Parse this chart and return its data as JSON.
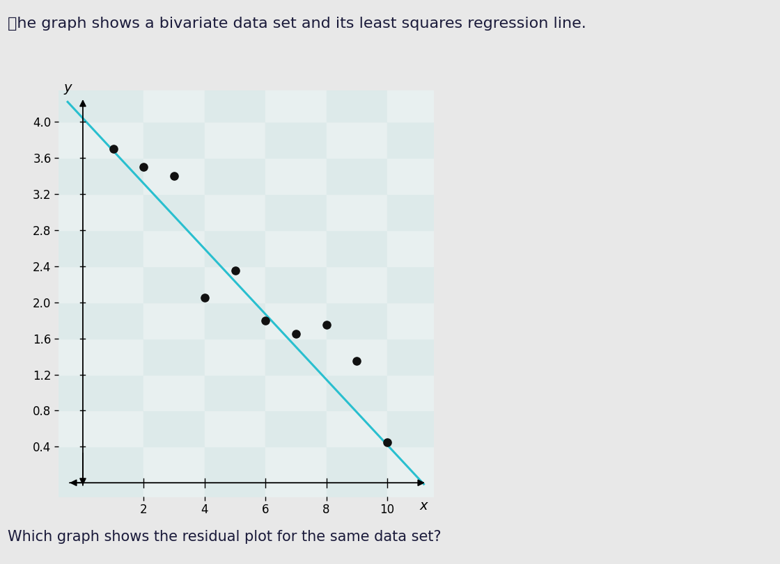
{
  "title": "⮩he graph shows a bivariate data set and its least squares regression line.",
  "question": "Which graph shows the residual plot for the same data set?",
  "title_fontsize": 16,
  "question_fontsize": 15,
  "background_color": "#e8e8e8",
  "plot_bg_color": "#e0eaea",
  "data_points": [
    [
      1,
      3.7
    ],
    [
      2,
      3.5
    ],
    [
      3,
      3.4
    ],
    [
      5,
      2.35
    ],
    [
      4,
      2.05
    ],
    [
      6,
      1.8
    ],
    [
      7,
      1.65
    ],
    [
      8,
      1.75
    ],
    [
      9,
      1.35
    ],
    [
      10,
      0.45
    ]
  ],
  "regression_intercept": 4.04,
  "regression_slope": -0.362,
  "line_color": "#29BFCF",
  "line_width": 2.2,
  "dot_color": "#111111",
  "dot_size": 65,
  "xlim": [
    -0.8,
    11.5
  ],
  "ylim": [
    -0.15,
    4.35
  ],
  "xticks": [
    2,
    4,
    6,
    8,
    10
  ],
  "yticks": [
    0.4,
    0.8,
    1.2,
    1.6,
    2.0,
    2.4,
    2.8,
    3.2,
    3.6,
    4.0
  ],
  "xlabel": "x",
  "ylabel": "y",
  "axis_label_fontsize": 14,
  "tick_fontsize": 12,
  "grid_color": "#b8d4d4",
  "grid_alpha": 0.9
}
